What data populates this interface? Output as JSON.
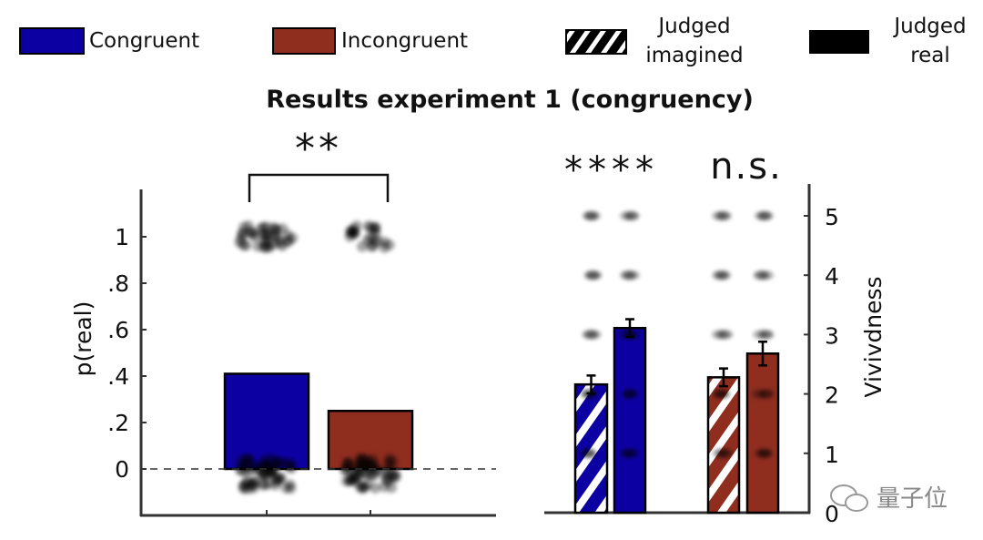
{
  "chart_data": [
    {
      "type": "bar",
      "title": "Results experiment 1 (congruency)",
      "panel": "left",
      "ylabel": "p(real)",
      "ylim": [
        -0.2,
        1.2
      ],
      "yticks": [
        0,
        0.2,
        0.4,
        0.6,
        0.8,
        1
      ],
      "ytick_labels": [
        "0",
        ".2",
        ".4",
        ".6",
        ".8",
        "1"
      ],
      "categories": [
        "Congruent",
        "Incongruent"
      ],
      "values": [
        0.41,
        0.25
      ],
      "colors": [
        "#0d00a3",
        "#8f2d1f"
      ],
      "significance": "**",
      "reference_line": 0
    },
    {
      "type": "bar",
      "panel": "right",
      "ylabel": "Vivivdness",
      "ylim": [
        0,
        5.5
      ],
      "yticks": [
        0,
        1,
        2,
        3,
        4,
        5
      ],
      "ytick_labels": [
        "0",
        "1",
        "2",
        "3",
        "4",
        "5"
      ],
      "groups": [
        {
          "name": "Congruent",
          "significance": "****",
          "series": [
            {
              "name": "Judged imagined",
              "value": 2.16,
              "error": 0.15,
              "hatched": true
            },
            {
              "name": "Judged real",
              "value": 3.11,
              "error": 0.15,
              "hatched": false
            }
          ]
        },
        {
          "name": "Incongruent",
          "significance": "n.s.",
          "series": [
            {
              "name": "Judged imagined",
              "value": 2.28,
              "error": 0.15,
              "hatched": true
            },
            {
              "name": "Judged real",
              "value": 2.68,
              "error": 0.2,
              "hatched": false
            }
          ]
        }
      ]
    }
  ],
  "legend": {
    "placement": "top",
    "items": [
      {
        "label": "Congruent",
        "color": "#0d00a3"
      },
      {
        "label": "Incongruent",
        "color": "#8f2d1f"
      },
      {
        "label": "Judged imagined",
        "lines": [
          "Judged",
          "imagined"
        ],
        "style": "hatched"
      },
      {
        "label": "Judged real",
        "lines": [
          "Judged",
          "real"
        ],
        "style": "solid-black"
      }
    ]
  },
  "watermark": "量子位"
}
